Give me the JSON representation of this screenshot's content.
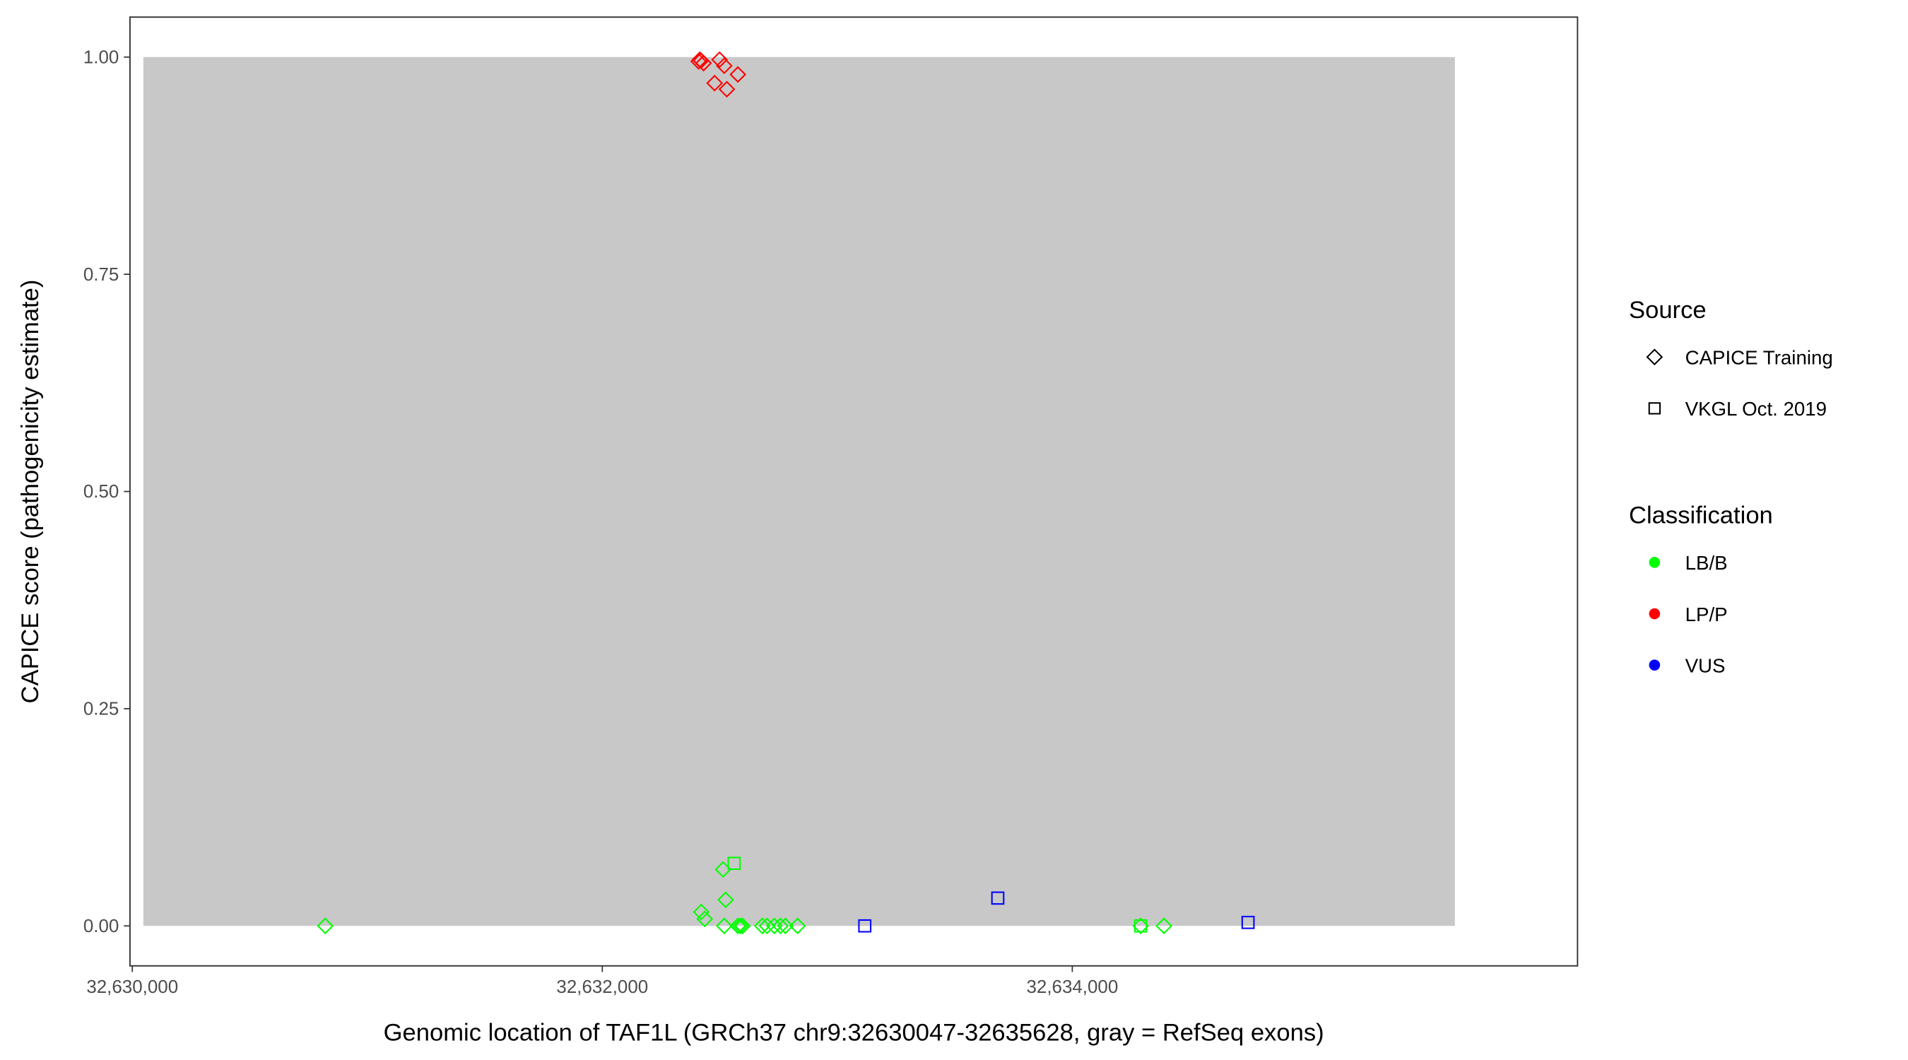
{
  "chart_data": {
    "type": "scatter",
    "xlabel": "Genomic location of TAF1L (GRCh37 chr9:32630047-32635628, gray = RefSeq exons)",
    "ylabel": "CAPICE score (pathogenicity estimate)",
    "xlim": [
      32629990,
      32636150
    ],
    "ylim": [
      -0.046,
      1.046
    ],
    "x_ticks": [
      32630000,
      32632000,
      32634000
    ],
    "x_tick_labels": [
      "32,630,000",
      "32,632,000",
      "32,634,000"
    ],
    "y_ticks": [
      0,
      0.25,
      0.5,
      0.75,
      1.0
    ],
    "y_tick_labels": [
      "0.00",
      "0.25",
      "0.50",
      "0.75",
      "1.00"
    ],
    "grid": false,
    "exon_regions": [
      [
        32630047,
        32635628
      ]
    ],
    "exon_color": "#C8C8C8",
    "legend_placement": "right",
    "legends": [
      {
        "title": "Source",
        "entries": [
          {
            "label": "CAPICE Training",
            "shape": "diamond"
          },
          {
            "label": "VKGL Oct. 2019",
            "shape": "square"
          }
        ]
      },
      {
        "title": "Classification",
        "entries": [
          {
            "label": "LB/B",
            "color": "#00FF00"
          },
          {
            "label": "LP/P",
            "color": "#FF0000"
          },
          {
            "label": "VUS",
            "color": "#0000FF"
          }
        ]
      }
    ],
    "points": [
      {
        "x": 32632410,
        "y": 0.995,
        "source": "CAPICE Training",
        "class": "LP/P"
      },
      {
        "x": 32632415,
        "y": 0.997,
        "source": "CAPICE Training",
        "class": "LP/P"
      },
      {
        "x": 32632420,
        "y": 0.996,
        "source": "CAPICE Training",
        "class": "LP/P"
      },
      {
        "x": 32632431,
        "y": 0.993,
        "source": "CAPICE Training",
        "class": "LP/P"
      },
      {
        "x": 32632499,
        "y": 0.997,
        "source": "CAPICE Training",
        "class": "LP/P"
      },
      {
        "x": 32632519,
        "y": 0.99,
        "source": "CAPICE Training",
        "class": "LP/P"
      },
      {
        "x": 32632478,
        "y": 0.97,
        "source": "CAPICE Training",
        "class": "LP/P"
      },
      {
        "x": 32632577,
        "y": 0.98,
        "source": "CAPICE Training",
        "class": "LP/P"
      },
      {
        "x": 32632530,
        "y": 0.963,
        "source": "CAPICE Training",
        "class": "LP/P"
      },
      {
        "x": 32630821,
        "y": 0.0,
        "source": "CAPICE Training",
        "class": "LB/B"
      },
      {
        "x": 32632421,
        "y": 0.016,
        "source": "CAPICE Training",
        "class": "LB/B"
      },
      {
        "x": 32632436,
        "y": 0.008,
        "source": "CAPICE Training",
        "class": "LB/B"
      },
      {
        "x": 32632514,
        "y": 0.065,
        "source": "CAPICE Training",
        "class": "LB/B"
      },
      {
        "x": 32632525,
        "y": 0.03,
        "source": "CAPICE Training",
        "class": "LB/B"
      },
      {
        "x": 32632519,
        "y": 0.0,
        "source": "CAPICE Training",
        "class": "LB/B"
      },
      {
        "x": 32632577,
        "y": 0.0,
        "source": "CAPICE Training",
        "class": "LB/B"
      },
      {
        "x": 32632587,
        "y": 0.0,
        "source": "CAPICE Training",
        "class": "LB/B"
      },
      {
        "x": 32632597,
        "y": 0.0,
        "source": "CAPICE Training",
        "class": "LB/B"
      },
      {
        "x": 32632681,
        "y": 0.0,
        "source": "CAPICE Training",
        "class": "LB/B"
      },
      {
        "x": 32632701,
        "y": 0.0,
        "source": "CAPICE Training",
        "class": "LB/B"
      },
      {
        "x": 32632732,
        "y": 0.0,
        "source": "CAPICE Training",
        "class": "LB/B"
      },
      {
        "x": 32632758,
        "y": 0.0,
        "source": "CAPICE Training",
        "class": "LB/B"
      },
      {
        "x": 32632779,
        "y": 0.0,
        "source": "CAPICE Training",
        "class": "LB/B"
      },
      {
        "x": 32632831,
        "y": 0.0,
        "source": "CAPICE Training",
        "class": "LB/B"
      },
      {
        "x": 32634291,
        "y": 0.0,
        "source": "CAPICE Training",
        "class": "LB/B"
      },
      {
        "x": 32634390,
        "y": 0.0,
        "source": "CAPICE Training",
        "class": "LB/B"
      },
      {
        "x": 32632561,
        "y": 0.072,
        "source": "VKGL Oct. 2019",
        "class": "LB/B"
      },
      {
        "x": 32634291,
        "y": 0.0,
        "source": "VKGL Oct. 2019",
        "class": "LB/B"
      },
      {
        "x": 32633117,
        "y": 0.0,
        "source": "VKGL Oct. 2019",
        "class": "VUS"
      },
      {
        "x": 32633683,
        "y": 0.032,
        "source": "VKGL Oct. 2019",
        "class": "VUS"
      },
      {
        "x": 32634748,
        "y": 0.004,
        "source": "VKGL Oct. 2019",
        "class": "VUS"
      }
    ]
  }
}
